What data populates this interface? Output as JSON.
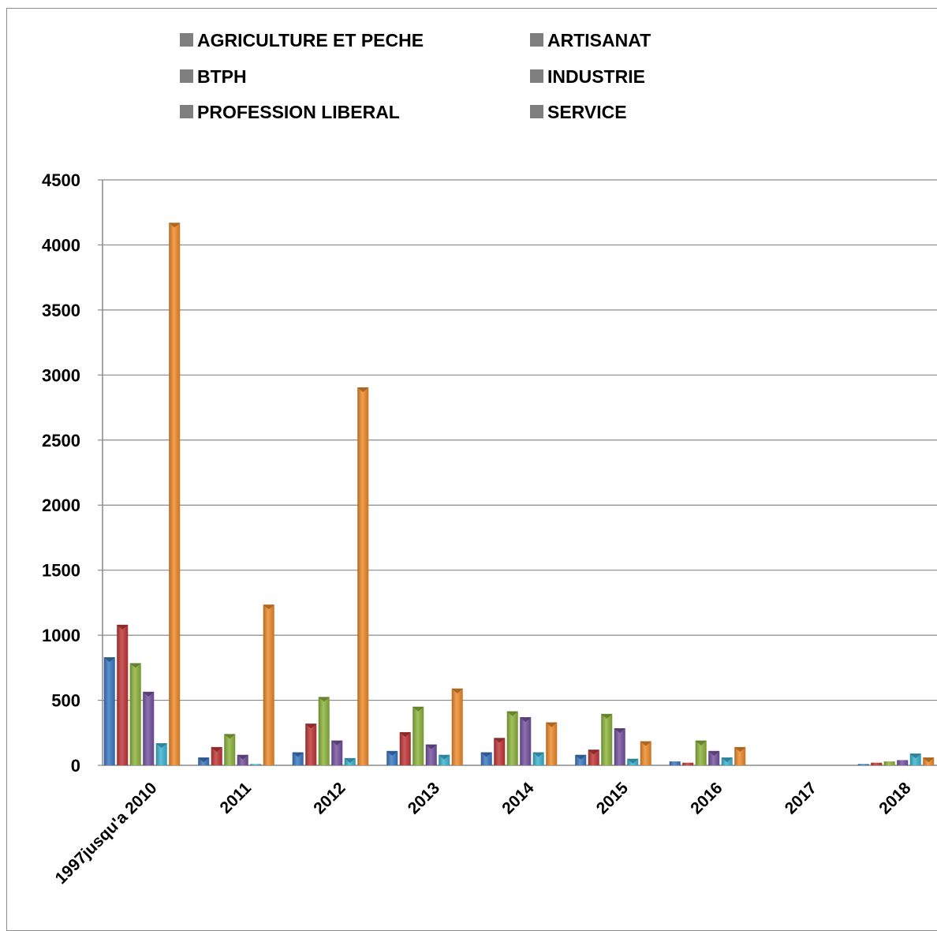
{
  "chart_data": {
    "type": "bar",
    "title": "",
    "xlabel": "",
    "ylabel": "",
    "ylim": [
      0,
      4500
    ],
    "yticks": [
      0,
      500,
      1000,
      1500,
      2000,
      2500,
      3000,
      3500,
      4000,
      4500
    ],
    "grid": true,
    "legend_position": "top",
    "categories": [
      "1997jusqu'a 2010",
      "2011",
      "2012",
      "2013",
      "2014",
      "2015",
      "2016",
      "2017",
      "2018"
    ],
    "series": [
      {
        "name": "AGRICULTURE ET PECHE",
        "color": "#3a78c3",
        "values": [
          830,
          60,
          100,
          110,
          100,
          80,
          30,
          0,
          10
        ]
      },
      {
        "name": "ARTISANAT",
        "color": "#c03636",
        "values": [
          1080,
          140,
          320,
          255,
          210,
          120,
          20,
          0,
          20
        ]
      },
      {
        "name": "BTPH",
        "color": "#8cb43c",
        "values": [
          785,
          240,
          525,
          450,
          415,
          395,
          190,
          0,
          30
        ]
      },
      {
        "name": "INDUSTRIE",
        "color": "#7552a0",
        "values": [
          565,
          80,
          190,
          160,
          370,
          285,
          110,
          0,
          40
        ]
      },
      {
        "name": "PROFESSION LIBERAL",
        "color": "#3cb4d2",
        "values": [
          170,
          10,
          55,
          80,
          100,
          50,
          60,
          0,
          90
        ]
      },
      {
        "name": "SERVICE",
        "color": "#ee8a2a",
        "values": [
          4170,
          1235,
          2905,
          590,
          330,
          185,
          140,
          0,
          60
        ]
      }
    ]
  }
}
